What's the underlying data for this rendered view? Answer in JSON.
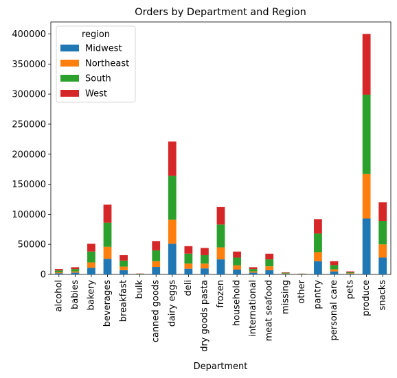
{
  "chart_data": {
    "type": "bar",
    "stacked": true,
    "title": "Orders by Department and Region",
    "xlabel": "Department",
    "ylabel": "",
    "ylim": [
      0,
      420000
    ],
    "yticks": [
      0,
      50000,
      100000,
      150000,
      200000,
      250000,
      300000,
      350000,
      400000
    ],
    "categories": [
      "alcohol",
      "babies",
      "bakery",
      "beverages",
      "breakfast",
      "bulk",
      "canned goods",
      "dairy eggs",
      "deli",
      "dry goods pasta",
      "frozen",
      "household",
      "international",
      "meat seafood",
      "missing",
      "other",
      "pantry",
      "personal care",
      "pets",
      "produce",
      "snacks"
    ],
    "legend": {
      "title": "region",
      "position": "upper-left"
    },
    "series": [
      {
        "name": "Midwest",
        "color": "#1f77b4",
        "values": [
          2000,
          3000,
          11000,
          26000,
          7000,
          400,
          12500,
          51000,
          9500,
          10000,
          25000,
          8000,
          3000,
          7000,
          800,
          300,
          22000,
          5000,
          1000,
          93000,
          28000
        ]
      },
      {
        "name": "Northeast",
        "color": "#ff7f0e",
        "values": [
          1500,
          2000,
          9000,
          20000,
          6000,
          300,
          9500,
          40000,
          8500,
          8000,
          20000,
          7000,
          2000,
          6500,
          700,
          200,
          15000,
          3500,
          1000,
          74000,
          22000
        ]
      },
      {
        "name": "South",
        "color": "#2ca02c",
        "values": [
          3000,
          4000,
          18000,
          40000,
          10000,
          500,
          18000,
          73000,
          16500,
          14000,
          38000,
          13000,
          4000,
          11500,
          1200,
          500,
          31000,
          7000,
          1500,
          132000,
          39000
        ]
      },
      {
        "name": "West",
        "color": "#d62728",
        "values": [
          2500,
          3000,
          13000,
          30000,
          9000,
          300,
          15500,
          57000,
          12500,
          12000,
          29000,
          10000,
          3000,
          9500,
          800,
          300,
          24000,
          6500,
          1500,
          101000,
          31000
        ]
      }
    ]
  }
}
